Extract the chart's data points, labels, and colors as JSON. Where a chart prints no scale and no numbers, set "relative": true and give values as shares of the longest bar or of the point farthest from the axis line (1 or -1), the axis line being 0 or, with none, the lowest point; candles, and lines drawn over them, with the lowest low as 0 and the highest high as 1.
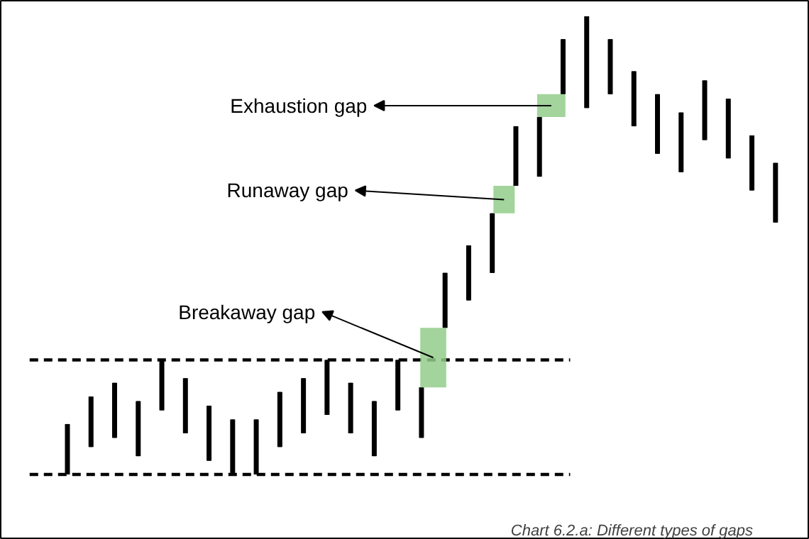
{
  "chart_data": {
    "type": "candlestick",
    "relative": true,
    "categories": [
      null,
      null,
      null,
      null,
      null,
      null,
      null,
      null,
      null,
      null,
      null,
      null,
      null,
      null,
      null,
      null,
      null,
      null,
      null,
      null,
      null,
      null,
      null,
      null,
      null,
      null,
      null,
      null,
      null,
      null,
      null
    ],
    "ohlc": [
      [
        0.0,
        0.11,
        0.0,
        0.11
      ],
      [
        0.06,
        0.17,
        0.06,
        0.17
      ],
      [
        0.08,
        0.2,
        0.08,
        0.2
      ],
      [
        0.04,
        0.16,
        0.04,
        0.16
      ],
      [
        0.14,
        0.25,
        0.14,
        0.25
      ],
      [
        0.09,
        0.21,
        0.09,
        0.21
      ],
      [
        0.03,
        0.15,
        0.03,
        0.15
      ],
      [
        0.0,
        0.12,
        0.0,
        0.12
      ],
      [
        0.0,
        0.12,
        0.0,
        0.12
      ],
      [
        0.06,
        0.18,
        0.06,
        0.18
      ],
      [
        0.09,
        0.21,
        0.09,
        0.21
      ],
      [
        0.13,
        0.25,
        0.13,
        0.25
      ],
      [
        0.09,
        0.2,
        0.09,
        0.2
      ],
      [
        0.04,
        0.16,
        0.04,
        0.16
      ],
      [
        0.14,
        0.25,
        0.14,
        0.25
      ],
      [
        0.08,
        0.19,
        0.08,
        0.19
      ],
      [
        0.32,
        0.44,
        0.32,
        0.44
      ],
      [
        0.38,
        0.5,
        0.38,
        0.5
      ],
      [
        0.44,
        0.57,
        0.44,
        0.57
      ],
      [
        0.63,
        0.76,
        0.63,
        0.76
      ],
      [
        0.65,
        0.78,
        0.65,
        0.78
      ],
      [
        0.83,
        0.95,
        0.83,
        0.95
      ],
      [
        0.8,
        1.0,
        0.8,
        1.0
      ],
      [
        0.83,
        0.95,
        0.83,
        0.95
      ],
      [
        0.76,
        0.88,
        0.76,
        0.88
      ],
      [
        0.7,
        0.83,
        0.7,
        0.83
      ],
      [
        0.66,
        0.79,
        0.66,
        0.79
      ],
      [
        0.73,
        0.86,
        0.73,
        0.86
      ],
      [
        0.69,
        0.82,
        0.69,
        0.82
      ],
      [
        0.62,
        0.74,
        0.62,
        0.74
      ],
      [
        0.55,
        0.68,
        0.55,
        0.68
      ]
    ],
    "color": "#000000",
    "series": [
      {
        "type": "bar",
        "color": "#92cc8a",
        "base": [
          null,
          null,
          null,
          null,
          null,
          null,
          null,
          null,
          null,
          null,
          null,
          null,
          null,
          null,
          null,
          0.19,
          null,
          null,
          0.57,
          null,
          0.78,
          null,
          null,
          null,
          null,
          null,
          null,
          null,
          null,
          null,
          null
        ],
        "values": [
          null,
          null,
          null,
          null,
          null,
          null,
          null,
          null,
          null,
          null,
          null,
          null,
          null,
          null,
          null,
          0.13,
          null,
          null,
          0.06,
          null,
          0.05,
          null,
          null,
          null,
          null,
          null,
          null,
          null,
          null,
          null,
          null
        ]
      }
    ],
    "ref_lines": [
      {
        "axis": "y",
        "value": 0.25,
        "line_style": "dashed",
        "color": "#000000"
      },
      {
        "axis": "y",
        "value": 0,
        "line_style": "dashed",
        "color": "#000000"
      }
    ],
    "annotations": [
      "Breakaway gap",
      "Runaway gap",
      "Exhaustion gap",
      "Chart 6.2.a: Different types of gaps"
    ]
  }
}
